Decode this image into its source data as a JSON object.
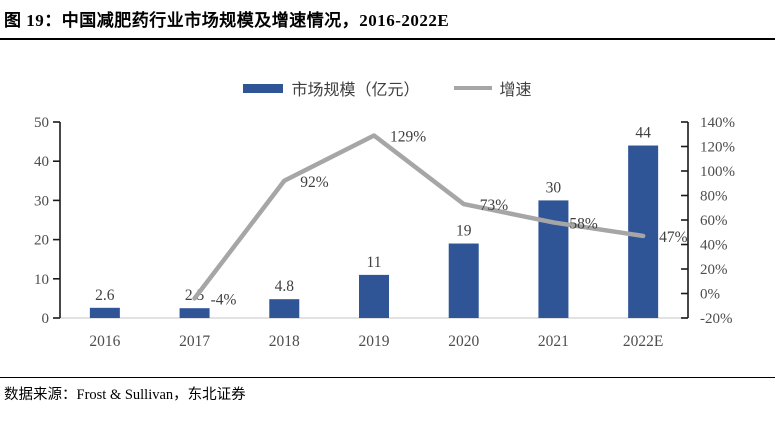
{
  "title": "图 19：中国减肥药行业市场规模及增速情况，2016-2022E",
  "source": "数据来源：Frost & Sullivan，东北证券",
  "legend": {
    "bar_label": "市场规模（亿元）",
    "line_label": "增速"
  },
  "colors": {
    "bar": "#2F5597",
    "line": "#A6A6A6",
    "axis_line": "#1a1a1a",
    "baseline": "#d9d9d9",
    "axis_text": "#4d4d4d",
    "data_label_text": "#3f3f3f"
  },
  "chart_data": {
    "type": "bar+line",
    "title": "中国减肥药行业市场规模及增速情况，2016-2022E",
    "categories": [
      "2016",
      "2017",
      "2018",
      "2019",
      "2020",
      "2021",
      "2022E"
    ],
    "series": [
      {
        "name": "市场规模（亿元）",
        "type": "bar",
        "axis": "left",
        "values": [
          2.6,
          2.5,
          4.8,
          11,
          19,
          30,
          44
        ],
        "labels": [
          "2.6",
          "2.5",
          "4.8",
          "11",
          "19",
          "30",
          "44"
        ]
      },
      {
        "name": "增速",
        "type": "line",
        "axis": "right",
        "values": [
          null,
          -4,
          92,
          129,
          73,
          58,
          47
        ],
        "labels": [
          "",
          "-4%",
          "92%",
          "129%",
          "73%",
          "58%",
          "47%"
        ]
      }
    ],
    "left_axis": {
      "min": 0,
      "max": 50,
      "step": 10,
      "ticks": [
        "0",
        "10",
        "20",
        "30",
        "40",
        "50"
      ]
    },
    "right_axis": {
      "min": -20,
      "max": 140,
      "step": 20,
      "ticks": [
        "-20%",
        "0%",
        "20%",
        "40%",
        "60%",
        "80%",
        "100%",
        "120%",
        "140%"
      ]
    },
    "grid": false,
    "legend_position": "top-center"
  }
}
